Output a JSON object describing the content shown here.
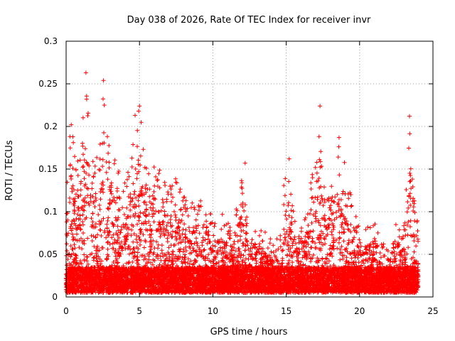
{
  "chart_data": {
    "type": "scatter",
    "title": "Day 038 of 2026, Rate Of TEC Index for receiver invr",
    "xlabel": "GPS time / hours",
    "ylabel": "ROTI / TECUs",
    "xlim": [
      0,
      25
    ],
    "ylim": [
      0,
      0.3
    ],
    "xticks": [
      0,
      5,
      10,
      15,
      20,
      25
    ],
    "xtick_labels": [
      "0",
      "5",
      "10",
      "15",
      "20",
      "25"
    ],
    "yticks": [
      0,
      0.05,
      0.1,
      0.15,
      0.2,
      0.25,
      0.3
    ],
    "ytick_labels": [
      "0",
      "0.05",
      "0.1",
      "0.15",
      "0.2",
      "0.25",
      "0.3"
    ],
    "grid": true,
    "marker": "+",
    "color": "#ff0000",
    "envelope": {
      "x": [
        0,
        0.3,
        0.6,
        1.0,
        1.3,
        1.6,
        2.0,
        2.5,
        3.0,
        3.5,
        4.0,
        4.5,
        5.0,
        5.5,
        6.0,
        6.5,
        7.0,
        7.5,
        8.0,
        8.5,
        9.0,
        9.5,
        10.0,
        10.5,
        11.0,
        11.5,
        12.0,
        12.5,
        13.0,
        13.5,
        14.0,
        14.5,
        15.0,
        15.5,
        16.0,
        16.5,
        17.0,
        17.5,
        18.0,
        18.5,
        19.0,
        19.5,
        20.0,
        20.5,
        21.0,
        21.5,
        22.0,
        22.5,
        23.0,
        23.5,
        24.0
      ],
      "y": [
        0.13,
        0.2,
        0.16,
        0.17,
        0.26,
        0.18,
        0.15,
        0.25,
        0.18,
        0.14,
        0.13,
        0.17,
        0.22,
        0.14,
        0.15,
        0.14,
        0.12,
        0.13,
        0.11,
        0.1,
        0.11,
        0.1,
        0.09,
        0.09,
        0.08,
        0.08,
        0.15,
        0.08,
        0.07,
        0.07,
        0.06,
        0.07,
        0.15,
        0.09,
        0.08,
        0.09,
        0.22,
        0.14,
        0.15,
        0.18,
        0.16,
        0.1,
        0.07,
        0.07,
        0.09,
        0.06,
        0.06,
        0.08,
        0.07,
        0.21,
        0.06
      ]
    },
    "highlights": [
      {
        "x": 1.35,
        "y": 0.263
      },
      {
        "x": 2.55,
        "y": 0.254
      },
      {
        "x": 1.4,
        "y": 0.232
      },
      {
        "x": 2.6,
        "y": 0.225
      },
      {
        "x": 5.0,
        "y": 0.224
      },
      {
        "x": 17.3,
        "y": 0.224
      },
      {
        "x": 23.4,
        "y": 0.212
      },
      {
        "x": 4.7,
        "y": 0.213
      },
      {
        "x": 0.35,
        "y": 0.202
      },
      {
        "x": 18.6,
        "y": 0.187
      },
      {
        "x": 12.2,
        "y": 0.157
      },
      {
        "x": 15.2,
        "y": 0.162
      }
    ],
    "points": [],
    "n_points": 9000
  }
}
